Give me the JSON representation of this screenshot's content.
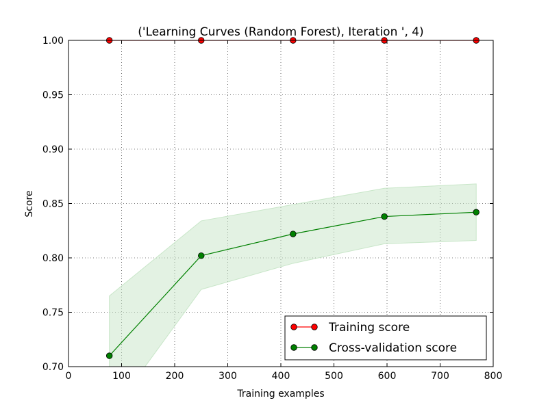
{
  "chart_data": {
    "type": "line",
    "title": "('Learning Curves (Random Forest), Iteration ', 4)",
    "xlabel": "Training examples",
    "ylabel": "Score",
    "xlim": [
      0,
      800
    ],
    "ylim": [
      0.7,
      1.0
    ],
    "x_ticks": [
      0,
      100,
      200,
      300,
      400,
      500,
      600,
      700,
      800
    ],
    "x_tick_labels": [
      "0",
      "100",
      "200",
      "300",
      "400",
      "500",
      "600",
      "700",
      "800"
    ],
    "y_ticks": [
      0.7,
      0.75,
      0.8,
      0.85,
      0.9,
      0.95,
      1.0
    ],
    "y_tick_labels": [
      "0.70",
      "0.75",
      "0.80",
      "0.85",
      "0.90",
      "0.95",
      "1.00"
    ],
    "grid": true,
    "legend_position": "bottom-right",
    "x": [
      77,
      250,
      423,
      595,
      768
    ],
    "series": [
      {
        "name": "Training score",
        "color": "#ff0000",
        "values": [
          1.0,
          1.0,
          1.0,
          1.0,
          1.0
        ]
      },
      {
        "name": "Cross-validation score",
        "color": "#008000",
        "band_color": "#c8e6c8",
        "values": [
          0.71,
          0.802,
          0.822,
          0.838,
          0.842
        ],
        "band_upper": [
          0.765,
          0.834,
          0.849,
          0.864,
          0.868
        ],
        "band_lower": [
          0.655,
          0.771,
          0.795,
          0.813,
          0.816
        ]
      }
    ]
  }
}
